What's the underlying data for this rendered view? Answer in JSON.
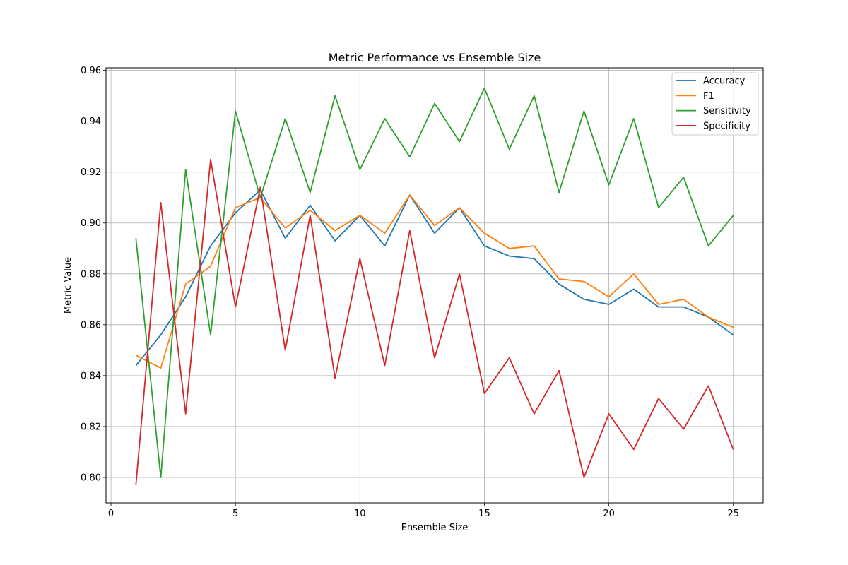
{
  "chart_data": {
    "type": "line",
    "title": "Metric Performance vs Ensemble Size",
    "xlabel": "Ensemble Size",
    "ylabel": "Metric Value",
    "xlim": [
      -0.2,
      26.2
    ],
    "ylim": [
      0.79,
      0.961
    ],
    "xticks": [
      0,
      5,
      10,
      15,
      20,
      25
    ],
    "yticks": [
      0.8,
      0.82,
      0.84,
      0.86,
      0.88,
      0.9,
      0.92,
      0.94,
      0.96
    ],
    "grid": true,
    "legend_position": "top-right",
    "x": [
      1,
      2,
      3,
      4,
      5,
      6,
      7,
      8,
      9,
      10,
      11,
      12,
      13,
      14,
      15,
      16,
      17,
      18,
      19,
      20,
      21,
      22,
      23,
      24,
      25
    ],
    "series": [
      {
        "name": "Accuracy",
        "color": "#1f77b4",
        "values": [
          0.844,
          0.856,
          0.871,
          0.891,
          0.904,
          0.913,
          0.894,
          0.907,
          0.893,
          0.903,
          0.891,
          0.911,
          0.896,
          0.906,
          0.891,
          0.887,
          0.886,
          0.876,
          0.87,
          0.868,
          0.874,
          0.867,
          0.867,
          0.863,
          0.856
        ]
      },
      {
        "name": "F1",
        "color": "#ff7f0e",
        "values": [
          0.848,
          0.843,
          0.876,
          0.883,
          0.906,
          0.91,
          0.898,
          0.905,
          0.897,
          0.903,
          0.896,
          0.911,
          0.899,
          0.906,
          0.896,
          0.89,
          0.891,
          0.878,
          0.877,
          0.871,
          0.88,
          0.868,
          0.87,
          0.863,
          0.859
        ]
      },
      {
        "name": "Sensitivity",
        "color": "#2ca02c",
        "values": [
          0.894,
          0.8,
          0.921,
          0.856,
          0.944,
          0.91,
          0.941,
          0.912,
          0.95,
          0.921,
          0.941,
          0.926,
          0.947,
          0.932,
          0.953,
          0.929,
          0.95,
          0.912,
          0.944,
          0.915,
          0.941,
          0.906,
          0.918,
          0.891,
          0.903
        ]
      },
      {
        "name": "Specificity",
        "color": "#d62728",
        "values": [
          0.797,
          0.908,
          0.825,
          0.925,
          0.867,
          0.914,
          0.85,
          0.903,
          0.839,
          0.886,
          0.844,
          0.897,
          0.847,
          0.88,
          0.833,
          0.847,
          0.825,
          0.842,
          0.8,
          0.825,
          0.811,
          0.831,
          0.819,
          0.836,
          0.811
        ]
      }
    ]
  }
}
